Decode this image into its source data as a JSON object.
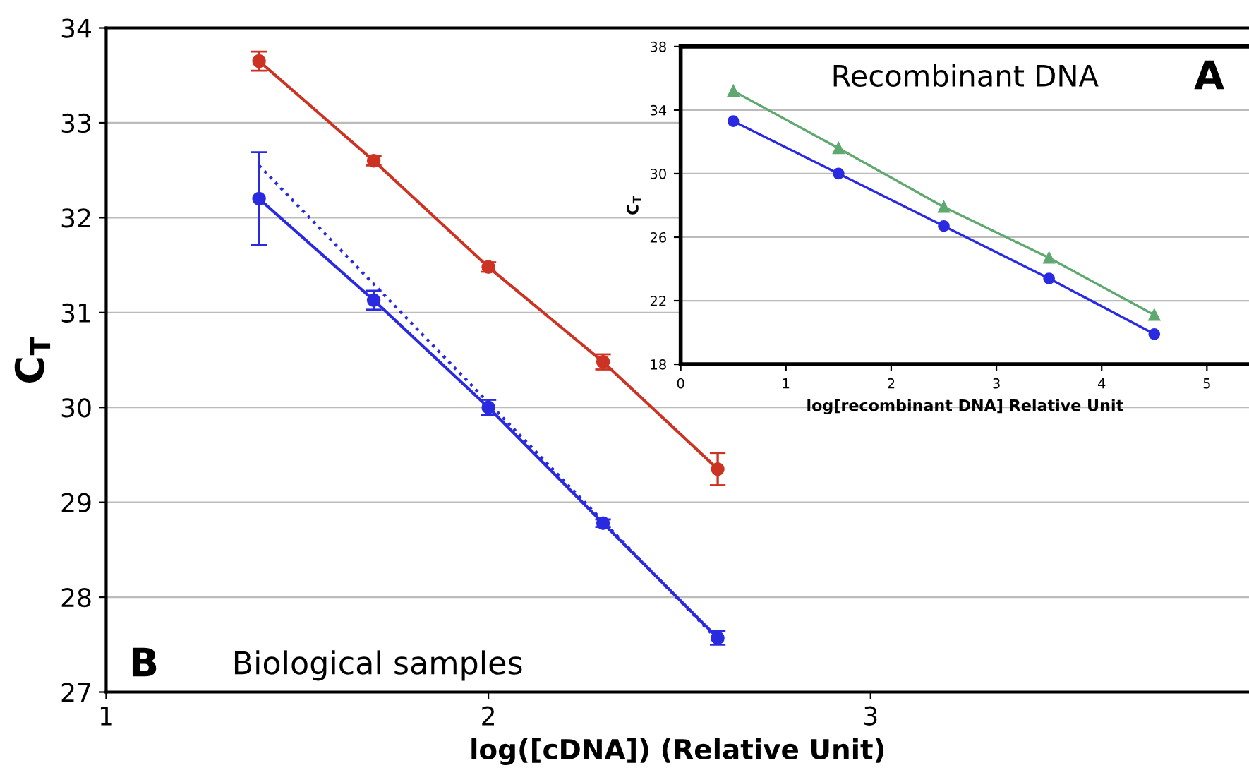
{
  "chart_data": [
    {
      "type": "line",
      "xlabel": "log([cDNA]) (Relative Unit)",
      "ylabel": "C$_{T}$",
      "x": [
        1.4,
        1.7,
        2.0,
        2.3,
        2.6
      ],
      "series": [
        {
          "color": "#cc3322",
          "values": [
            33.65,
            32.6,
            31.48,
            30.48,
            29.35
          ],
          "errors": [
            0.1,
            0.05,
            0.05,
            0.08,
            0.17
          ],
          "marker": "circle",
          "line_style": "solid"
        },
        {
          "color": "#2a2ae0",
          "values": [
            32.2,
            31.13,
            30.0,
            28.78,
            27.57
          ],
          "errors": [
            0.49,
            0.1,
            0.08,
            0.04,
            0.07
          ],
          "marker": "circle",
          "line_style": "solid"
        },
        {
          "color": "#2a2ae0",
          "x": [
            1.4,
            2.6
          ],
          "values": [
            32.55,
            27.55
          ],
          "marker": "none",
          "line_style": "dotted"
        }
      ],
      "xlim": [
        1,
        3.99
      ],
      "xticks": [
        1,
        2,
        3
      ],
      "ylim": [
        27,
        34
      ],
      "yticks": [
        27,
        28,
        29,
        30,
        31,
        32,
        33,
        34
      ],
      "grid": "y",
      "legend": false,
      "annotations": [
        "B",
        "Biological samples"
      ]
    },
    {
      "type": "line",
      "xlabel": "log[recombinant DNA] Relative Unit",
      "ylabel": "C$_{T}$",
      "x": [
        0.5,
        1.5,
        2.5,
        3.5,
        4.5
      ],
      "series": [
        {
          "color": "#5fa870",
          "values": [
            35.2,
            31.6,
            27.9,
            24.7,
            21.1
          ],
          "marker": "triangle",
          "line_style": "solid"
        },
        {
          "color": "#2a2ae0",
          "values": [
            33.3,
            30.0,
            26.7,
            23.4,
            19.9
          ],
          "marker": "circle",
          "line_style": "solid"
        }
      ],
      "xlim": [
        0,
        5.4
      ],
      "xticks": [
        0,
        1,
        2,
        3,
        4,
        5
      ],
      "ylim": [
        18,
        38
      ],
      "yticks": [
        18,
        22,
        26,
        30,
        34,
        38
      ],
      "grid": "y",
      "legend": false,
      "annotations": [
        "Recombinant DNA",
        "A"
      ]
    }
  ]
}
